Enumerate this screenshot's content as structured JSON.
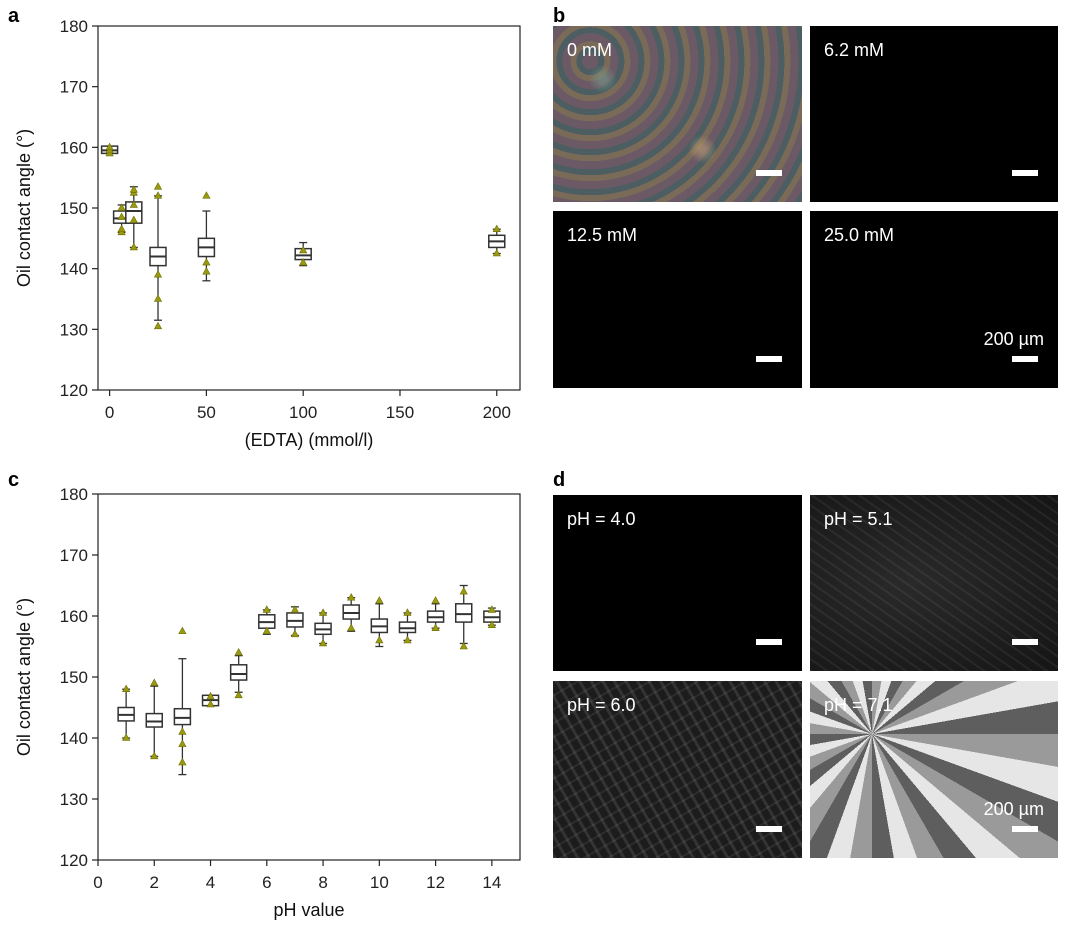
{
  "panels": {
    "a": {
      "letter": "a",
      "chart_data": {
        "type": "box",
        "xlabel": "(EDTA) (mmol/l)",
        "ylabel": "Oil contact angle (°)",
        "xlim": [
          -6,
          212
        ],
        "ylim": [
          120,
          180
        ],
        "xticks": [
          0,
          50,
          100,
          150,
          200
        ],
        "yticks": [
          120,
          130,
          140,
          150,
          160,
          170,
          180
        ],
        "boxes": [
          {
            "x": 0,
            "q1": 159.0,
            "median": 159.5,
            "q3": 160.2,
            "whisker_low": 159.0,
            "whisker_high": 160.2,
            "points": [
              159.0,
              159.5,
              160.0
            ]
          },
          {
            "x": 6.2,
            "q1": 147.5,
            "median": 148.3,
            "q3": 149.5,
            "whisker_low": 146.0,
            "whisker_high": 150.5,
            "points": [
              146.0,
              146.5,
              148.5,
              150.0
            ]
          },
          {
            "x": 12.5,
            "q1": 147.5,
            "median": 149.5,
            "q3": 151.0,
            "whisker_low": 143.5,
            "whisker_high": 153.5,
            "points": [
              143.5,
              148.0,
              150.5,
              152.5,
              153.0
            ]
          },
          {
            "x": 25,
            "q1": 140.5,
            "median": 142.0,
            "q3": 143.5,
            "whisker_low": 131.5,
            "whisker_high": 152.0,
            "points": [
              130.5,
              135.0,
              139.0,
              152.0,
              153.5
            ]
          },
          {
            "x": 50,
            "q1": 142.0,
            "median": 143.5,
            "q3": 145.0,
            "whisker_low": 138.0,
            "whisker_high": 149.5,
            "points": [
              139.5,
              141.0,
              152.0
            ]
          },
          {
            "x": 100,
            "q1": 141.5,
            "median": 142.2,
            "q3": 143.3,
            "whisker_low": 140.5,
            "whisker_high": 144.3,
            "points": [
              141.0,
              143.0
            ]
          },
          {
            "x": 200,
            "q1": 143.5,
            "median": 144.5,
            "q3": 145.5,
            "whisker_low": 142.5,
            "whisker_high": 146.5,
            "points": [
              142.5,
              146.5
            ]
          }
        ]
      }
    },
    "c": {
      "letter": "c",
      "chart_data": {
        "type": "box",
        "xlabel": "pH value",
        "ylabel": "Oil contact angle (°)",
        "xlim": [
          0,
          15
        ],
        "ylim": [
          120,
          180
        ],
        "xticks": [
          0,
          2,
          4,
          6,
          8,
          10,
          12,
          14
        ],
        "yticks": [
          120,
          130,
          140,
          150,
          160,
          170,
          180
        ],
        "boxes": [
          {
            "x": 1,
            "q1": 142.8,
            "median": 143.8,
            "q3": 145.0,
            "whisker_low": 140.0,
            "whisker_high": 148.0,
            "points": [
              140.0,
              148.0
            ]
          },
          {
            "x": 2,
            "q1": 141.8,
            "median": 142.7,
            "q3": 144.0,
            "whisker_low": 137.0,
            "whisker_high": 148.5,
            "points": [
              137.0,
              149.0
            ]
          },
          {
            "x": 3,
            "q1": 142.2,
            "median": 143.3,
            "q3": 144.8,
            "whisker_low": 134.0,
            "whisker_high": 153.0,
            "points": [
              136.0,
              139.0,
              141.0,
              157.5
            ]
          },
          {
            "x": 4,
            "q1": 145.3,
            "median": 146.2,
            "q3": 147.0,
            "whisker_low": 145.3,
            "whisker_high": 147.0,
            "points": [
              145.5,
              146.8
            ]
          },
          {
            "x": 5,
            "q1": 149.5,
            "median": 150.5,
            "q3": 152.0,
            "whisker_low": 147.5,
            "whisker_high": 153.5,
            "points": [
              147.0,
              154.0
            ]
          },
          {
            "x": 6,
            "q1": 158.0,
            "median": 159.0,
            "q3": 160.2,
            "whisker_low": 157.0,
            "whisker_high": 161.0,
            "points": [
              157.5,
              161.0
            ]
          },
          {
            "x": 7,
            "q1": 158.2,
            "median": 159.2,
            "q3": 160.5,
            "whisker_low": 156.8,
            "whisker_high": 161.5,
            "points": [
              157.0,
              161.0
            ]
          },
          {
            "x": 8,
            "q1": 157.0,
            "median": 157.8,
            "q3": 158.8,
            "whisker_low": 155.5,
            "whisker_high": 160.5,
            "points": [
              155.5,
              160.5
            ]
          },
          {
            "x": 9,
            "q1": 159.5,
            "median": 160.5,
            "q3": 161.8,
            "whisker_low": 157.5,
            "whisker_high": 163.0,
            "points": [
              158.0,
              163.0
            ]
          },
          {
            "x": 10,
            "q1": 157.3,
            "median": 158.3,
            "q3": 159.5,
            "whisker_low": 155.0,
            "whisker_high": 162.0,
            "points": [
              156.0,
              162.5
            ]
          },
          {
            "x": 11,
            "q1": 157.3,
            "median": 158.0,
            "q3": 159.0,
            "whisker_low": 156.0,
            "whisker_high": 160.5,
            "points": [
              156.0,
              160.5
            ]
          },
          {
            "x": 12,
            "q1": 159.0,
            "median": 159.8,
            "q3": 160.8,
            "whisker_low": 158.0,
            "whisker_high": 162.0,
            "points": [
              158.0,
              162.5
            ]
          },
          {
            "x": 13,
            "q1": 159.0,
            "median": 160.3,
            "q3": 162.0,
            "whisker_low": 155.5,
            "whisker_high": 165.0,
            "points": [
              155.0,
              164.0
            ]
          },
          {
            "x": 14,
            "q1": 159.0,
            "median": 159.8,
            "q3": 160.8,
            "whisker_low": 158.5,
            "whisker_high": 161.3,
            "points": [
              158.5,
              161.0
            ]
          }
        ]
      }
    },
    "b": {
      "letter": "b",
      "images": [
        {
          "label": "0 mM",
          "scalebar_text": ""
        },
        {
          "label": "6.2 mM",
          "scalebar_text": ""
        },
        {
          "label": "12.5 mM",
          "scalebar_text": ""
        },
        {
          "label": "25.0 mM",
          "scalebar_text": "200 µm"
        }
      ]
    },
    "d": {
      "letter": "d",
      "images": [
        {
          "label": "pH = 4.0",
          "scalebar_text": ""
        },
        {
          "label": "pH = 5.1",
          "scalebar_text": ""
        },
        {
          "label": "pH = 6.0",
          "scalebar_text": ""
        },
        {
          "label": "pH = 7.1",
          "scalebar_text": "200 µm"
        }
      ]
    }
  },
  "colors": {
    "box_edge": "#333333",
    "point_fill": "#9a9a12",
    "point_stroke": "#6e6e00",
    "axis": "#222222"
  }
}
